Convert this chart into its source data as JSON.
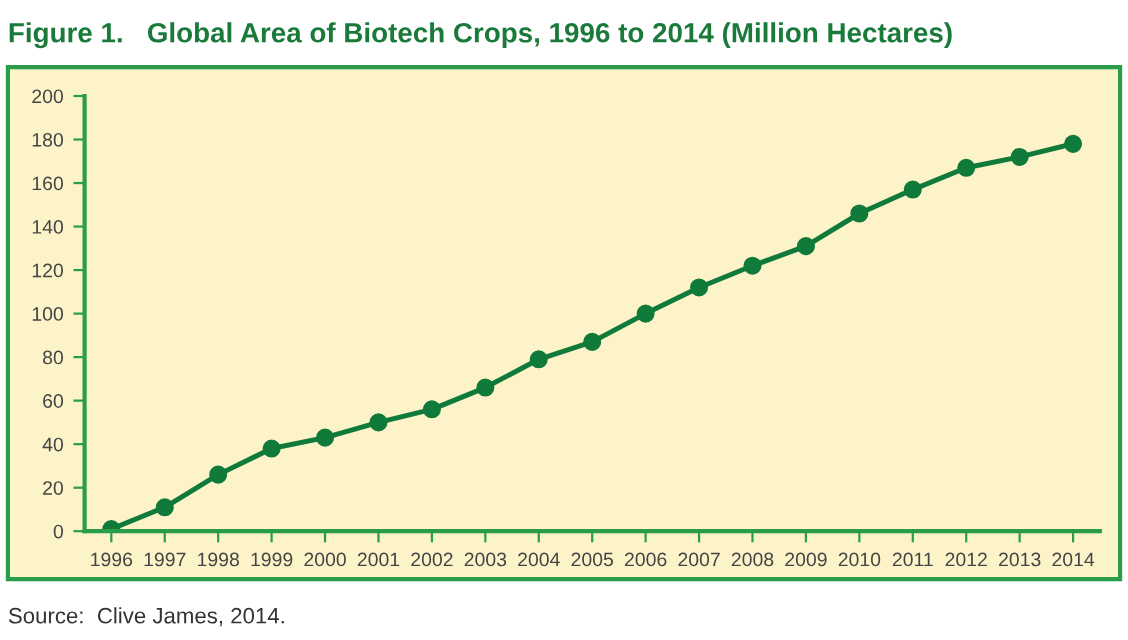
{
  "chart_data": {
    "type": "line",
    "title": "Figure 1.   Global Area of Biotech Crops, 1996 to 2014 (Million Hectares)",
    "categories": [
      "1996",
      "1997",
      "1998",
      "1999",
      "2000",
      "2001",
      "2002",
      "2003",
      "2004",
      "2005",
      "2006",
      "2007",
      "2008",
      "2009",
      "2010",
      "2011",
      "2012",
      "2013",
      "2014"
    ],
    "series": [
      {
        "color": "#0f7a3a",
        "values": [
          1,
          11,
          26,
          38,
          43,
          50,
          56,
          66,
          79,
          87,
          100,
          112,
          122,
          131,
          146,
          157,
          167,
          172,
          178
        ]
      }
    ],
    "ylim": [
      0,
      200
    ],
    "yticks": [
      0,
      20,
      40,
      60,
      80,
      100,
      120,
      140,
      160,
      180,
      200
    ],
    "marker": "circle",
    "line_style": "solid",
    "grid": false,
    "legend": false,
    "annotations": [
      "Source:  Clive James, 2014."
    ]
  }
}
